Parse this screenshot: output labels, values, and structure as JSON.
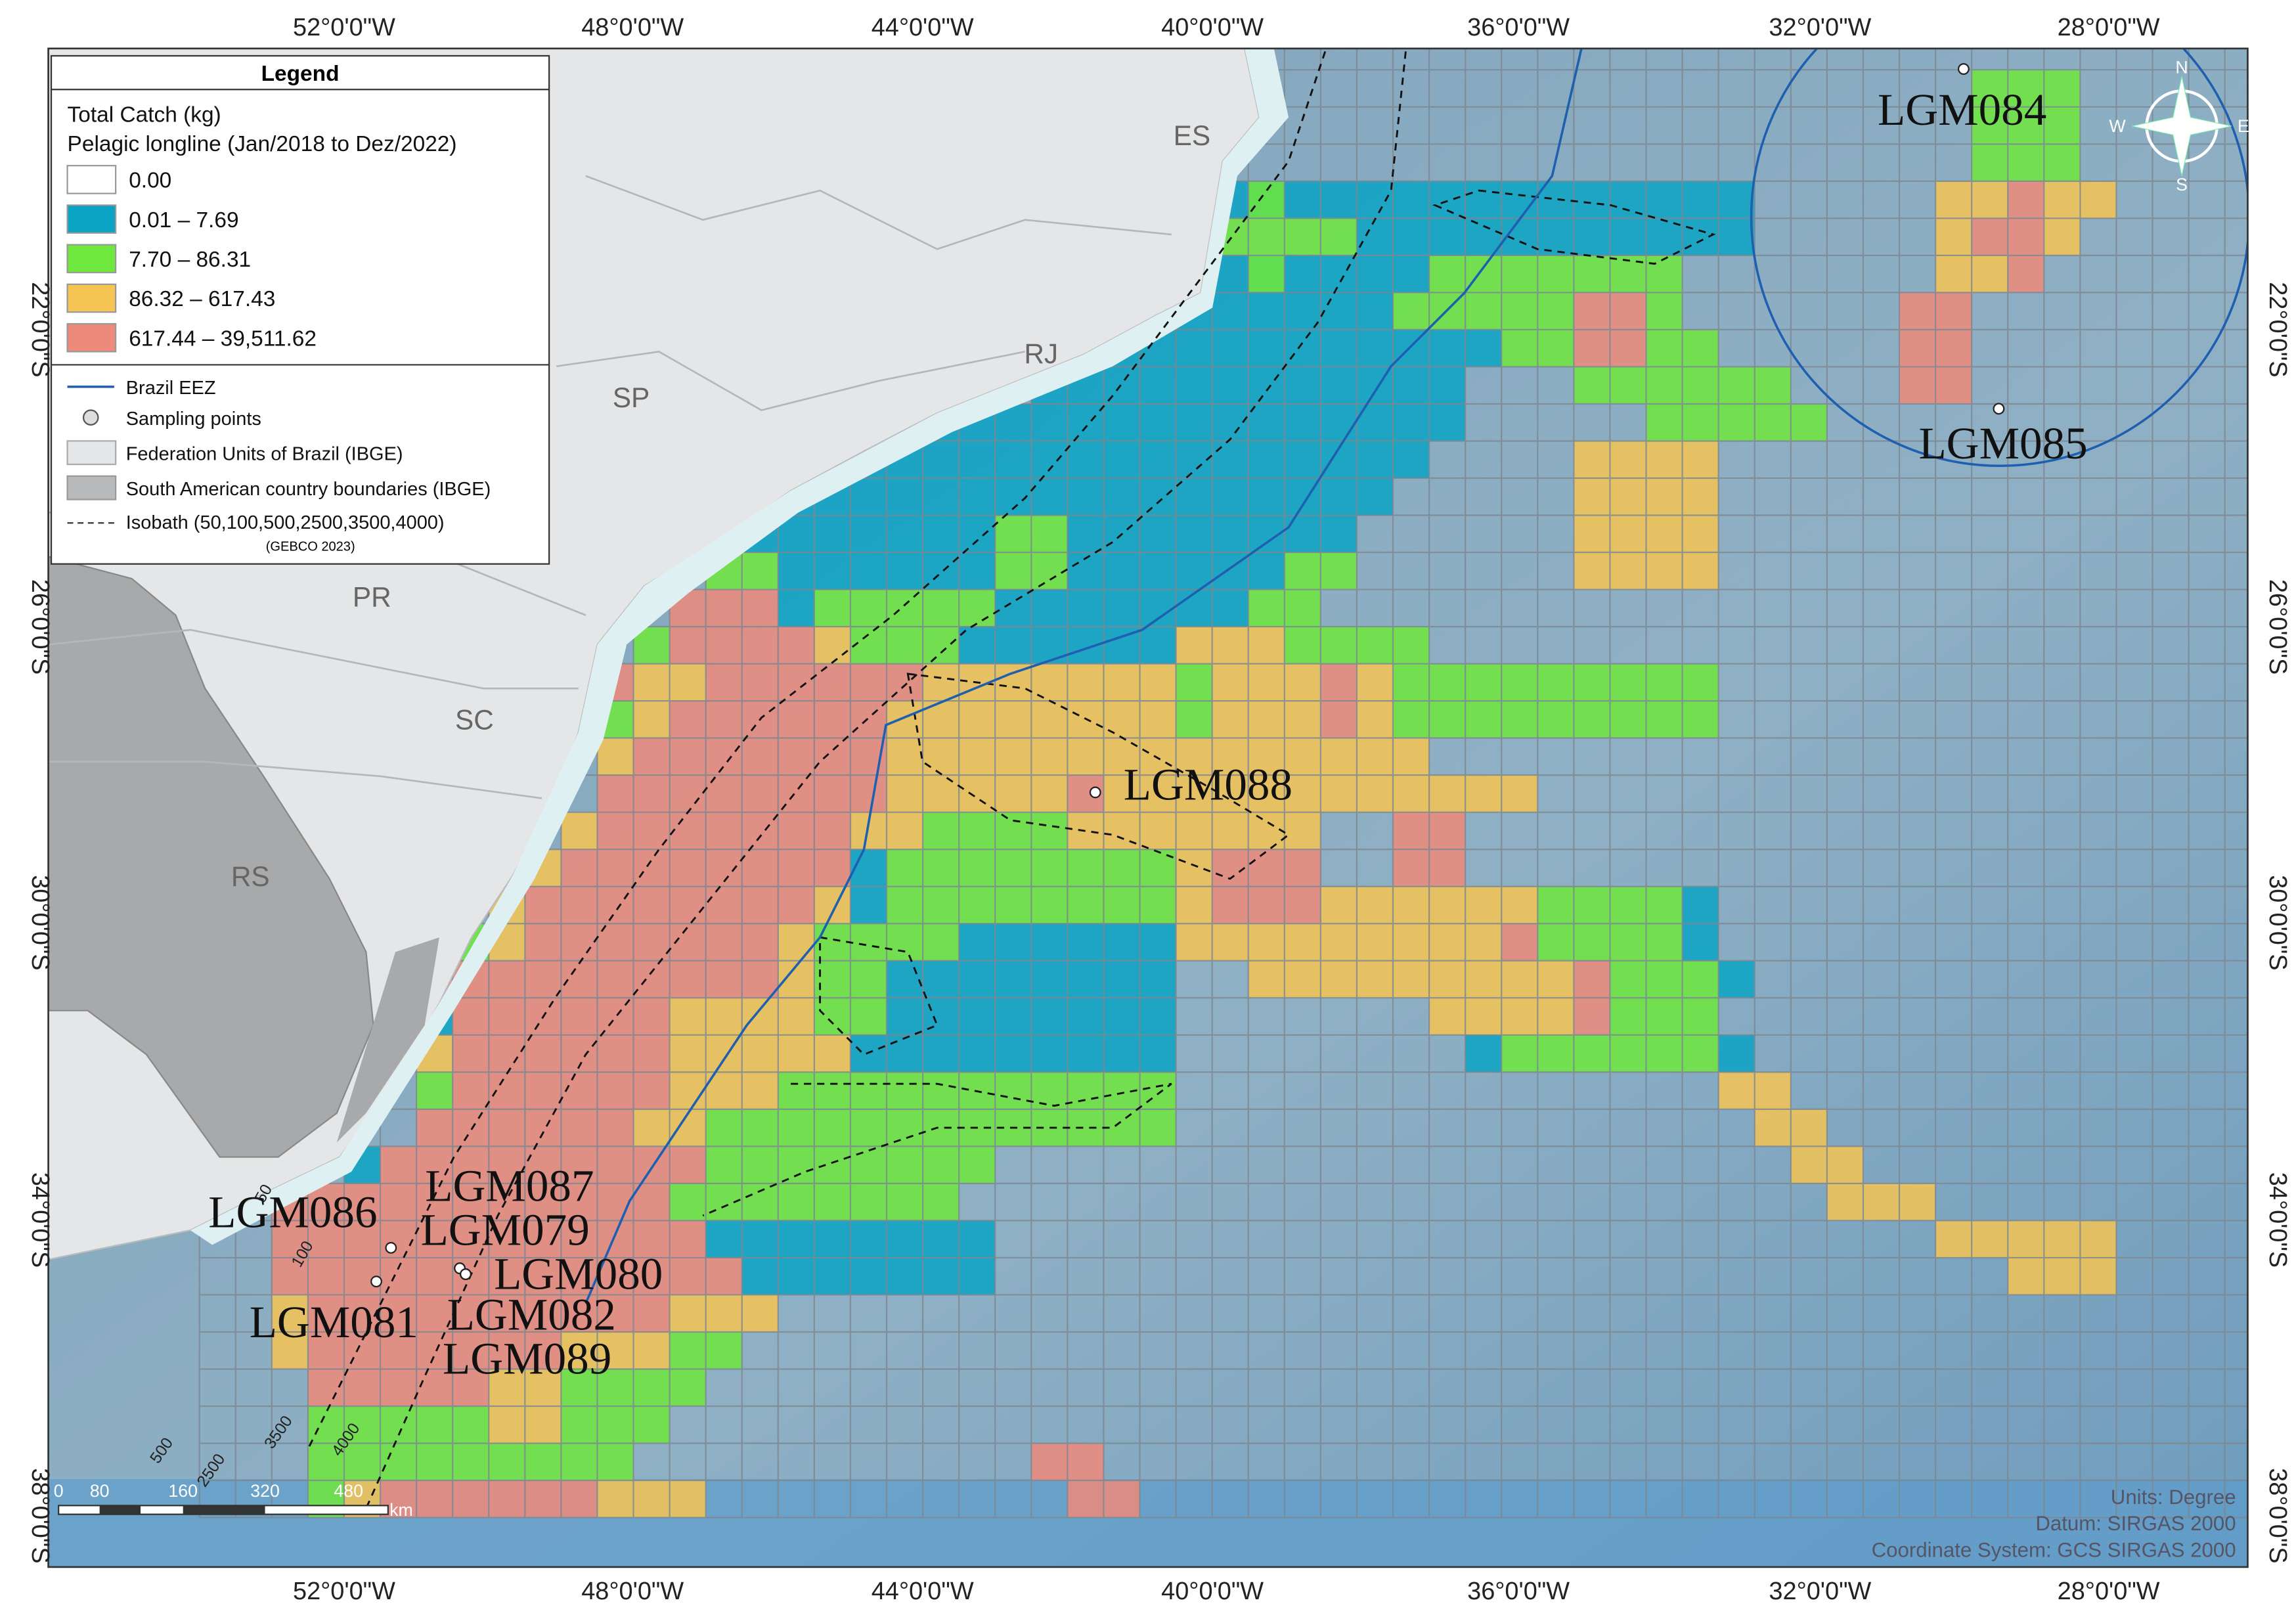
{
  "legend": {
    "title": "Legend",
    "heading": "Total Catch (kg)",
    "subheading": "Pelagic longline  (Jan/2018 to Dez/2022)",
    "classes": [
      {
        "label": "0.00",
        "color": "#ffffff"
      },
      {
        "label": "0.01 – 7.69",
        "color": "#0aa3c4"
      },
      {
        "label": "7.70 – 86.31",
        "color": "#6ee83c"
      },
      {
        "label": "86.32 – 617.43",
        "color": "#f6c453"
      },
      {
        "label": "617.44 – 39,511.62",
        "color": "#ee8a7a"
      }
    ],
    "layers": [
      "Brazil EEZ",
      "Sampling points",
      "Federation Units of Brazil (IBGE)",
      "South American country boundaries (IBGE)",
      "Isobath (50,100,500,2500,3500,4000)"
    ],
    "isobath_source": "(GEBCO 2023)"
  },
  "lon_labels": [
    "52°0'0\"W",
    "48°0'0\"W",
    "44°0'0\"W",
    "40°0'0\"W",
    "36°0'0\"W",
    "32°0'0\"W",
    "28°0'0\"W"
  ],
  "lat_labels": [
    "22°0'0\"S",
    "26°0'0\"S",
    "30°0'0\"S",
    "34°0'0\"S",
    "38°0'0\"S"
  ],
  "states": [
    "ES",
    "RJ",
    "SP",
    "PR",
    "SC",
    "RS"
  ],
  "points": [
    "LGM084",
    "LGM085",
    "LGM088",
    "LGM086",
    "LGM087",
    "LGM079",
    "LGM080",
    "LGM082",
    "LGM089",
    "LGM081"
  ],
  "isobath_labels": [
    "50",
    "100",
    "500",
    "2500",
    "3500",
    "4000"
  ],
  "scale": [
    "0",
    "80",
    "160",
    "320",
    "480",
    "km"
  ],
  "compass": [
    "N",
    "E",
    "S",
    "W"
  ],
  "notes": [
    "Units: Degree",
    "Datum: SIRGAS 2000",
    "Coordinate System: GCS SIRGAS 2000"
  ]
}
